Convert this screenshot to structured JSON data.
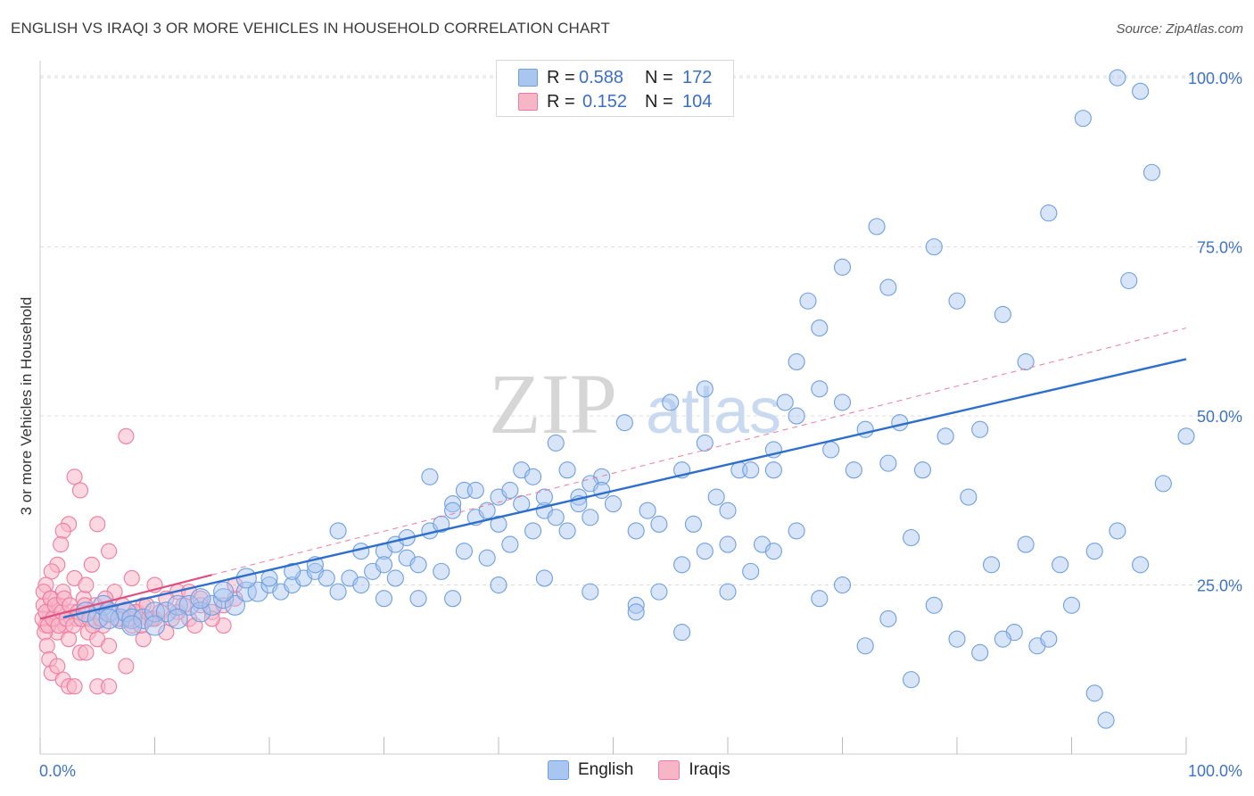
{
  "title": "ENGLISH VS IRAQI 3 OR MORE VEHICLES IN HOUSEHOLD CORRELATION CHART",
  "source": "Source: ZipAtlas.com",
  "legend_top": {
    "r_label": "R =",
    "n_label": "N =",
    "english": {
      "r": "0.588",
      "n": "172"
    },
    "iraqis": {
      "r": "0.152",
      "n": "104"
    }
  },
  "legend_bottom": {
    "english": "English",
    "iraqis": "Iraqis"
  },
  "watermark": {
    "zip": "ZIP",
    "atlas": "atlas"
  },
  "colors": {
    "english_fill": "#a9c6f0",
    "english_stroke": "#6f9fe0",
    "english_line": "#2e6fcc",
    "iraqis_fill": "#f7b6c8",
    "iraqis_stroke": "#ef7ca0",
    "iraqis_line": "#e0507e",
    "axis_text": "#3f73c8",
    "grid": "#dcdcdc"
  },
  "chart_data": {
    "type": "scatter",
    "title": "ENGLISH VS IRAQI 3 OR MORE VEHICLES IN HOUSEHOLD CORRELATION CHART",
    "xlabel": "",
    "ylabel": "3 or more Vehicles in Household",
    "xlim": [
      0,
      100
    ],
    "ylim": [
      0,
      102
    ],
    "x_tick_labels": [
      "0.0%",
      "100.0%"
    ],
    "y_ticks": [
      25,
      50,
      75,
      100
    ],
    "y_tick_labels": [
      "25.0%",
      "50.0%",
      "75.0%",
      "100.0%"
    ],
    "series": [
      {
        "name": "English",
        "trend": {
          "x0": 2,
          "y0": 20.2,
          "x1": 100,
          "y1": 58.4
        },
        "points": [
          [
            4,
            21
          ],
          [
            5,
            20
          ],
          [
            5.5,
            22
          ],
          [
            6,
            21
          ],
          [
            7,
            20
          ],
          [
            7.5,
            21
          ],
          [
            8,
            20
          ],
          [
            9,
            20
          ],
          [
            10,
            21
          ],
          [
            11,
            21
          ],
          [
            12,
            22
          ],
          [
            13,
            22
          ],
          [
            14,
            21
          ],
          [
            15,
            22
          ],
          [
            16,
            23
          ],
          [
            17,
            22
          ],
          [
            18,
            24
          ],
          [
            19,
            24
          ],
          [
            20,
            25
          ],
          [
            21,
            24
          ],
          [
            22,
            25
          ],
          [
            23,
            26
          ],
          [
            24,
            27
          ],
          [
            25,
            26
          ],
          [
            26,
            24
          ],
          [
            27,
            26
          ],
          [
            28,
            25
          ],
          [
            29,
            27
          ],
          [
            30,
            30
          ],
          [
            31,
            31
          ],
          [
            32,
            29
          ],
          [
            33,
            28
          ],
          [
            34,
            33
          ],
          [
            35,
            34
          ],
          [
            36,
            37
          ],
          [
            37,
            39
          ],
          [
            38,
            35
          ],
          [
            39,
            36
          ],
          [
            40,
            38
          ],
          [
            41,
            39
          ],
          [
            42,
            42
          ],
          [
            43,
            41
          ],
          [
            44,
            36
          ],
          [
            45,
            46
          ],
          [
            46,
            42
          ],
          [
            47,
            38
          ],
          [
            48,
            35
          ],
          [
            49,
            41
          ],
          [
            50,
            37
          ],
          [
            51,
            49
          ],
          [
            52,
            33
          ],
          [
            53,
            36
          ],
          [
            54,
            34
          ],
          [
            55,
            52
          ],
          [
            56,
            42
          ],
          [
            57,
            34
          ],
          [
            58,
            54
          ],
          [
            59,
            38
          ],
          [
            60,
            36
          ],
          [
            61,
            42
          ],
          [
            62,
            27
          ],
          [
            63,
            31
          ],
          [
            64,
            42
          ],
          [
            65,
            52
          ],
          [
            66,
            58
          ],
          [
            67,
            67
          ],
          [
            68,
            63
          ],
          [
            69,
            45
          ],
          [
            70,
            72
          ],
          [
            71,
            42
          ],
          [
            72,
            48
          ],
          [
            73,
            78
          ],
          [
            74,
            69
          ],
          [
            75,
            49
          ],
          [
            76,
            32
          ],
          [
            77,
            42
          ],
          [
            78,
            75
          ],
          [
            79,
            47
          ],
          [
            80,
            67
          ],
          [
            81,
            38
          ],
          [
            82,
            48
          ],
          [
            83,
            28
          ],
          [
            84,
            65
          ],
          [
            85,
            18
          ],
          [
            86,
            58
          ],
          [
            87,
            16
          ],
          [
            88,
            80
          ],
          [
            89,
            28
          ],
          [
            90,
            22
          ],
          [
            91,
            94
          ],
          [
            92,
            30
          ],
          [
            93,
            5
          ],
          [
            94,
            100
          ],
          [
            95,
            70
          ],
          [
            96,
            98
          ],
          [
            97,
            86
          ],
          [
            36,
            23
          ],
          [
            40,
            25
          ],
          [
            44,
            26
          ],
          [
            48,
            24
          ],
          [
            52,
            22
          ],
          [
            56,
            28
          ],
          [
            60,
            24
          ],
          [
            64,
            30
          ],
          [
            68,
            23
          ],
          [
            72,
            16
          ],
          [
            76,
            11
          ],
          [
            80,
            17
          ],
          [
            84,
            17
          ],
          [
            88,
            17
          ],
          [
            92,
            9
          ],
          [
            62,
            42
          ],
          [
            66,
            33
          ],
          [
            70,
            25
          ],
          [
            74,
            20
          ],
          [
            78,
            22
          ],
          [
            82,
            15
          ],
          [
            86,
            31
          ],
          [
            52,
            21
          ],
          [
            54,
            24
          ],
          [
            56,
            18
          ],
          [
            58,
            30
          ],
          [
            60,
            31
          ],
          [
            64,
            45
          ],
          [
            66,
            50
          ],
          [
            68,
            54
          ],
          [
            70,
            52
          ],
          [
            74,
            43
          ],
          [
            58,
            46
          ],
          [
            48,
            40
          ],
          [
            46,
            33
          ],
          [
            44,
            38
          ],
          [
            42,
            37
          ],
          [
            40,
            34
          ],
          [
            38,
            39
          ],
          [
            36,
            36
          ],
          [
            34,
            41
          ],
          [
            32,
            32
          ],
          [
            30,
            28
          ],
          [
            28,
            30
          ],
          [
            26,
            33
          ],
          [
            24,
            28
          ],
          [
            22,
            27
          ],
          [
            20,
            26
          ],
          [
            18,
            26
          ],
          [
            16,
            24
          ],
          [
            14,
            23
          ],
          [
            12,
            20
          ],
          [
            10,
            19
          ],
          [
            8,
            19
          ],
          [
            6,
            20
          ],
          [
            30,
            23
          ],
          [
            31,
            26
          ],
          [
            33,
            23
          ],
          [
            35,
            27
          ],
          [
            37,
            30
          ],
          [
            39,
            29
          ],
          [
            41,
            31
          ],
          [
            43,
            33
          ],
          [
            45,
            35
          ],
          [
            47,
            37
          ],
          [
            49,
            39
          ],
          [
            100,
            47
          ],
          [
            96,
            28
          ],
          [
            98,
            40
          ],
          [
            94,
            33
          ]
        ]
      },
      {
        "name": "Iraqis",
        "trend": {
          "x0": 0,
          "y0": 20.0,
          "x1": 15,
          "y1": 26.5
        },
        "trend_extended": {
          "x0": 15,
          "y0": 26.5,
          "x1": 100,
          "y1": 63.0
        },
        "points": [
          [
            0.5,
            19
          ],
          [
            0.8,
            21
          ],
          [
            1,
            23
          ],
          [
            1.2,
            20
          ],
          [
            1.5,
            18
          ],
          [
            1.7,
            22
          ],
          [
            2,
            24
          ],
          [
            2.2,
            19
          ],
          [
            2.5,
            17
          ],
          [
            2.8,
            21
          ],
          [
            3,
            26
          ],
          [
            3.2,
            20
          ],
          [
            3.5,
            15
          ],
          [
            3.8,
            23
          ],
          [
            4,
            25
          ],
          [
            4.2,
            18
          ],
          [
            4.5,
            28
          ],
          [
            4.8,
            22
          ],
          [
            5,
            34
          ],
          [
            5.5,
            19
          ],
          [
            6,
            30
          ],
          [
            6.5,
            24
          ],
          [
            7,
            20
          ],
          [
            7.5,
            13
          ],
          [
            8,
            26
          ],
          [
            8.5,
            21
          ],
          [
            9,
            17
          ],
          [
            9.5,
            20
          ],
          [
            10,
            25
          ],
          [
            11,
            18
          ],
          [
            12,
            24
          ],
          [
            13,
            20
          ],
          [
            14,
            22
          ],
          [
            15,
            21
          ],
          [
            16,
            19
          ],
          [
            17,
            23
          ],
          [
            7.5,
            47
          ],
          [
            3,
            41
          ],
          [
            3.5,
            39
          ],
          [
            2.5,
            34
          ],
          [
            2,
            33
          ],
          [
            1.8,
            31
          ],
          [
            1.5,
            28
          ],
          [
            1,
            27
          ],
          [
            0.5,
            25
          ],
          [
            0.3,
            22
          ],
          [
            0.2,
            20
          ],
          [
            0.4,
            18
          ],
          [
            0.6,
            16
          ],
          [
            0.8,
            14
          ],
          [
            1,
            12
          ],
          [
            1.5,
            13
          ],
          [
            2,
            11
          ],
          [
            2.5,
            10
          ],
          [
            3,
            10
          ],
          [
            5,
            10
          ],
          [
            6,
            10
          ],
          [
            4,
            15
          ],
          [
            5,
            17
          ],
          [
            6,
            16
          ],
          [
            8,
            19
          ],
          [
            9,
            22
          ],
          [
            10,
            20
          ],
          [
            11,
            23
          ],
          [
            12,
            21
          ],
          [
            13,
            24
          ],
          [
            14,
            23
          ],
          [
            15,
            20
          ],
          [
            16,
            22
          ],
          [
            17,
            25
          ],
          [
            0.3,
            24
          ],
          [
            0.5,
            21
          ],
          [
            0.7,
            19
          ],
          [
            0.9,
            23
          ],
          [
            1.1,
            20
          ],
          [
            1.3,
            22
          ],
          [
            1.6,
            19
          ],
          [
            1.9,
            21
          ],
          [
            2.1,
            23
          ],
          [
            2.3,
            20
          ],
          [
            2.6,
            22
          ],
          [
            2.9,
            19
          ],
          [
            3.3,
            21
          ],
          [
            3.6,
            20
          ],
          [
            3.9,
            22
          ],
          [
            4.3,
            20
          ],
          [
            4.6,
            19
          ],
          [
            4.9,
            21
          ],
          [
            5.3,
            20
          ],
          [
            5.7,
            23
          ],
          [
            6.2,
            21
          ],
          [
            6.8,
            20
          ],
          [
            7.2,
            22
          ],
          [
            7.8,
            20
          ],
          [
            8.3,
            21
          ],
          [
            8.8,
            19
          ],
          [
            9.3,
            22
          ],
          [
            9.8,
            20
          ],
          [
            10.5,
            21
          ],
          [
            11.5,
            20
          ],
          [
            12.5,
            22
          ],
          [
            13.5,
            19
          ]
        ]
      }
    ]
  }
}
